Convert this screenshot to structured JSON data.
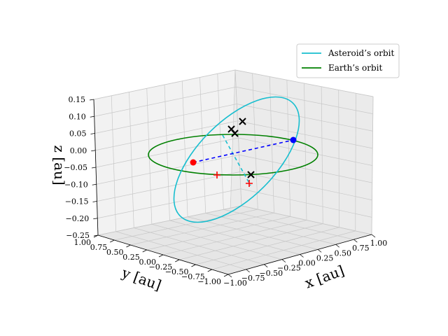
{
  "chart_data": {
    "type": "line",
    "projection": "3d",
    "xlabel": "x [au]",
    "ylabel": "y [au]",
    "zlabel": "z [au]",
    "xlim": [
      -1.0,
      1.0
    ],
    "ylim": [
      -1.0,
      1.0
    ],
    "zlim": [
      -0.25,
      0.15
    ],
    "x_ticks": [
      "−1.00",
      "−0.75",
      "−0.50",
      "−0.25",
      "0.00",
      "0.25",
      "0.50",
      "0.75",
      "1.00"
    ],
    "y_ticks": [
      "−1.00",
      "−0.75",
      "−0.50",
      "−0.25",
      "0.00",
      "0.25",
      "0.50",
      "0.75",
      "1.00"
    ],
    "z_ticks": [
      "−0.25",
      "−0.20",
      "−0.15",
      "−0.10",
      "−0.05",
      "0.00",
      "0.05",
      "0.10",
      "0.15"
    ],
    "x_tick_values": [
      -1.0,
      -0.75,
      -0.5,
      -0.25,
      0.0,
      0.25,
      0.5,
      0.75,
      1.0
    ],
    "y_tick_values": [
      -1.0,
      -0.75,
      -0.5,
      -0.25,
      0.0,
      0.25,
      0.5,
      0.75,
      1.0
    ],
    "z_tick_values": [
      -0.25,
      -0.2,
      -0.15,
      -0.1,
      -0.05,
      0.0,
      0.05,
      0.1,
      0.15
    ],
    "grid": true,
    "legend_position": "top-right",
    "series": [
      {
        "name": "Asteroid’s orbit",
        "color": "#17becf",
        "style": "solid",
        "shape": "tilted ellipse",
        "radius": 1.0,
        "inclination_z_amplitude": 0.12
      },
      {
        "name": "Earth’s orbit",
        "color": "#008000",
        "style": "solid",
        "shape": "circle in z=0 plane",
        "radius": 1.0
      }
    ],
    "hidden_segment": {
      "color": "#17becf",
      "style": "dashed"
    },
    "nodes_line": {
      "color": "#0000ff",
      "style": "dashed"
    },
    "points": [
      {
        "label": "red point",
        "color": "#ff0000",
        "marker": "circle",
        "x": -0.7,
        "y": 0.7,
        "z": 0.0
      },
      {
        "label": "blue point",
        "color": "#0000ff",
        "marker": "circle",
        "x": 0.7,
        "y": -0.7,
        "z": 0.0
      },
      {
        "label": "plus",
        "color": "#ff0000",
        "marker": "plus",
        "x": -0.6,
        "y": 0.2,
        "z": -0.06
      },
      {
        "label": "plus",
        "color": "#ff0000",
        "marker": "plus",
        "x": 0.0,
        "y": 0.5,
        "z": -0.06
      },
      {
        "label": "cross",
        "color": "#000000",
        "marker": "x",
        "x": -0.13,
        "y": -0.7,
        "z": 0.07
      },
      {
        "label": "cross",
        "color": "#000000",
        "marker": "x",
        "x": -0.1,
        "y": -0.6,
        "z": 0.06
      },
      {
        "label": "cross",
        "color": "#000000",
        "marker": "x",
        "x": -0.35,
        "y": -0.9,
        "z": 0.08
      },
      {
        "label": "cross",
        "color": "#000000",
        "marker": "x",
        "x": 0.2,
        "y": 0.5,
        "z": -0.05
      }
    ]
  }
}
